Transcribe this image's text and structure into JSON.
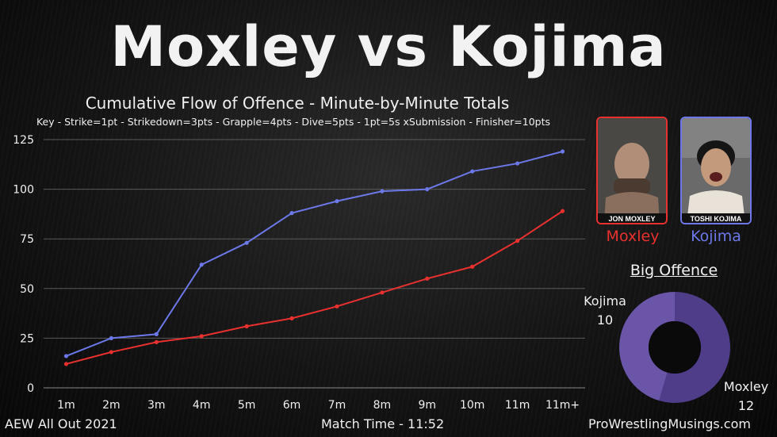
{
  "title": "Moxley vs Kojima",
  "subtitle": "Cumulative Flow of Offence - Minute-by-Minute Totals",
  "key": "Key - Strike=1pt - Strikedown=3pts - Grapple=4pts - Dive=5pts - 1pt=5s xSubmission - Finisher=10pts",
  "chart_data": {
    "type": "line",
    "title": "Cumulative Flow of Offence - Minute-by-Minute Totals",
    "categories": [
      "1m",
      "2m",
      "3m",
      "4m",
      "5m",
      "6m",
      "7m",
      "8m",
      "9m",
      "10m",
      "11m",
      "11m+"
    ],
    "ylim": [
      0,
      125
    ],
    "yticks": [
      0,
      25,
      50,
      75,
      100,
      125
    ],
    "grid": true,
    "series": [
      {
        "name": "Moxley",
        "color": "#e8312f",
        "values": [
          12,
          18,
          23,
          26,
          31,
          35,
          41,
          48,
          55,
          61,
          74,
          89
        ]
      },
      {
        "name": "Kojima",
        "color": "#6c78e8",
        "values": [
          16,
          25,
          27,
          62,
          73,
          88,
          94,
          99,
          100,
          109,
          113,
          119
        ]
      }
    ]
  },
  "wrestlers": {
    "moxley": {
      "name": "Moxley",
      "caption": "JON MOXLEY",
      "color": "#e8312f"
    },
    "kojima": {
      "name": "Kojima",
      "caption": "TOSHI KOJIMA",
      "color": "#6c78e8"
    }
  },
  "big_offence": {
    "title": "Big Offence",
    "chart": {
      "type": "pie",
      "labels": [
        "Moxley",
        "Kojima"
      ],
      "values": [
        12,
        10
      ],
      "colors": [
        "#4f3d8a",
        "#6a55a8"
      ]
    }
  },
  "footer": {
    "event": "AEW All Out 2021",
    "match_time": "Match Time - 11:52",
    "site": "ProWrestlingMusings.com"
  }
}
